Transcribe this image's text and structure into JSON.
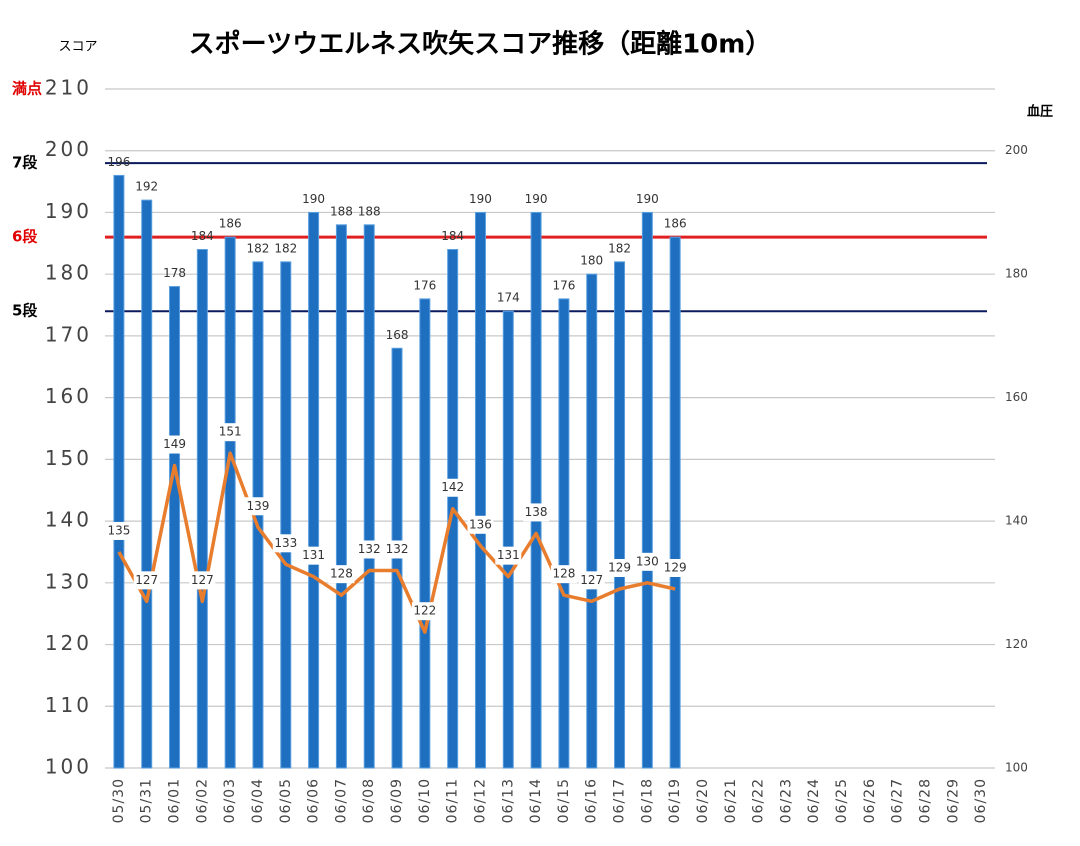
{
  "chart_data": {
    "type": "bar_line",
    "title": "スポーツウエルネス吹矢スコア推移（距離10m）",
    "y_axis_label": "スコア",
    "y2_axis_label": "血圧",
    "categories": [
      "05/30",
      "05/31",
      "06/01",
      "06/02",
      "06/03",
      "06/04",
      "06/05",
      "06/06",
      "06/07",
      "06/08",
      "06/09",
      "06/10",
      "06/11",
      "06/12",
      "06/13",
      "06/14",
      "06/15",
      "06/16",
      "06/17",
      "06/18",
      "06/19",
      "06/20",
      "06/21",
      "06/22",
      "06/23",
      "06/24",
      "06/25",
      "06/26",
      "06/27",
      "06/28",
      "06/29",
      "06/30"
    ],
    "series": [
      {
        "name": "スコア",
        "type": "bar",
        "color": "#1f6fc0",
        "values": [
          196,
          192,
          178,
          184,
          186,
          182,
          182,
          190,
          188,
          188,
          168,
          176,
          184,
          190,
          174,
          190,
          176,
          180,
          182,
          190,
          186,
          null,
          null,
          null,
          null,
          null,
          null,
          null,
          null,
          null,
          null,
          null
        ]
      },
      {
        "name": "血圧",
        "type": "line",
        "axis": "y2",
        "color": "#e87d2e",
        "values": [
          135,
          127,
          149,
          127,
          151,
          139,
          133,
          131,
          128,
          132,
          132,
          122,
          142,
          136,
          131,
          138,
          128,
          127,
          129,
          130,
          129,
          null,
          null,
          null,
          null,
          null,
          null,
          null,
          null,
          null,
          null,
          null
        ]
      }
    ],
    "ylim": [
      100,
      210
    ],
    "yticks": [
      100,
      110,
      120,
      130,
      140,
      150,
      160,
      170,
      180,
      190,
      200,
      210
    ],
    "y2lim": [
      100,
      210
    ],
    "y2ticks": [
      100,
      120,
      140,
      160,
      180,
      200
    ],
    "grid": true,
    "reference_lines": [
      {
        "label": "満点",
        "value": 210,
        "label_color": "#e00000",
        "show_line": false
      },
      {
        "label": "7段",
        "value": 198,
        "label_color": "#000000",
        "color": "#0a1a5c",
        "show_line": true
      },
      {
        "label": "6段",
        "value": 186,
        "label_color": "#e00000",
        "color": "#e02020",
        "show_line": true
      },
      {
        "label": "5段",
        "value": 174,
        "label_color": "#000000",
        "color": "#0a1a5c",
        "show_line": true
      }
    ]
  }
}
